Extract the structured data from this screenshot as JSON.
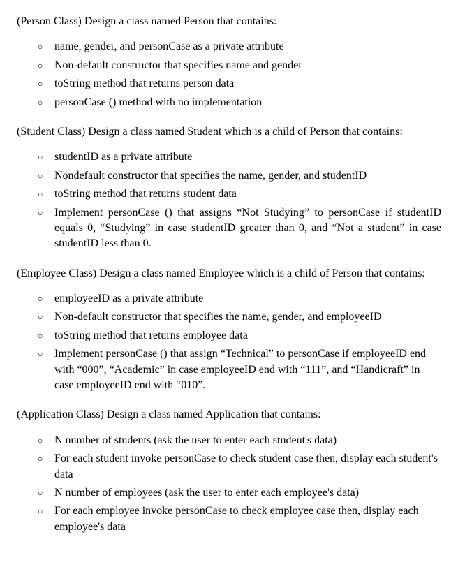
{
  "person": {
    "title": "(Person Class) Design a class named Person that contains:",
    "items": [
      "name, gender, and personCase as a private attribute",
      "Non-default constructor that specifies name and gender",
      "toString method that returns person data",
      "personCase () method with no implementation"
    ]
  },
  "student": {
    "title": "(Student Class) Design a class named Student which is a child of Person that contains:",
    "items": [
      "studentID as a private attribute",
      "Nondefault constructor that specifies the name, gender, and studentID",
      "toString method that returns student data",
      "Implement personCase () that assigns “Not Studying” to personCase if studentID equals 0, “Studying” in case studentID greater than 0, and “Not a student” in case studentID less than 0."
    ]
  },
  "employee": {
    "title": "(Employee Class) Design a class named Employee which is a child of Person that contains:",
    "items": [
      "employeeID as a private attribute",
      "Non-default constructor that specifies the name, gender, and employeeID",
      "toString method that returns employee data",
      "Implement personCase () that assign “Technical” to personCase if employeeID end with “000”, “Academic” in case employeeID end with “111”, and “Handicraft” in case employeeID end with “010”."
    ]
  },
  "application": {
    "title": "(Application Class) Design a class named Application that contains:",
    "items": [
      "N number of students (ask the user to enter each student's data)",
      "For each student invoke personCase to check student case then, display each student's data",
      "N number of employees (ask the user to enter each employee's data)",
      "For each employee invoke personCase to check employee case then, display each employee's data"
    ]
  }
}
